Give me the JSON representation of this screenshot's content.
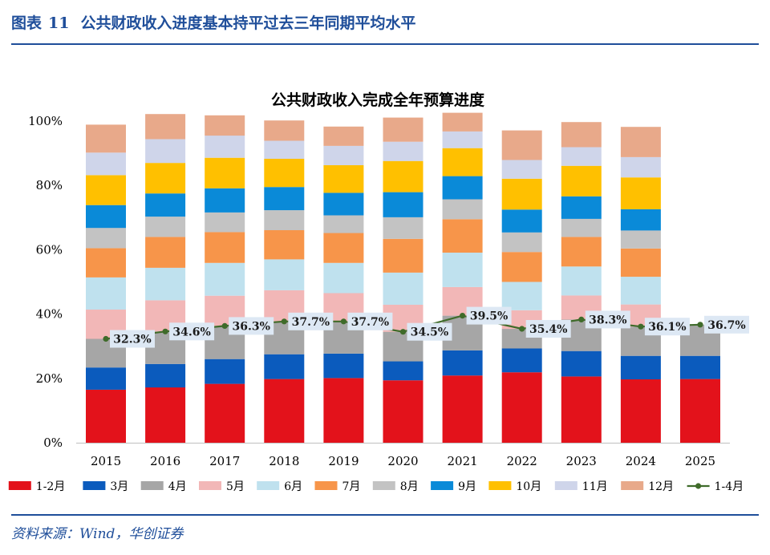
{
  "header": {
    "figure_label": "图表",
    "figure_number": "11",
    "title": "公共财政收入进度基本持平过去三年同期平均水平"
  },
  "source": "资料来源：Wind，华创证券",
  "colors": {
    "1-2月": "#e3121b",
    "3月": "#0b5bbd",
    "4月": "#a6a6a6",
    "5月": "#f2b7b7",
    "6月": "#bfe1ee",
    "7月": "#f7954a",
    "8月": "#c3c3c3",
    "9月": "#0a8ad8",
    "10月": "#ffc000",
    "11月": "#cfd5ea",
    "12月": "#e8a98a",
    "line": "#3f6b2a",
    "label_bg": "#dde8f4",
    "axis_text": "#000000"
  },
  "chart_data": {
    "type": "bar",
    "stacked": true,
    "title": "公共财政收入完成全年预算进度",
    "xlabel": "",
    "ylabel": "",
    "ylim": [
      0,
      100
    ],
    "yticks": [
      "0%",
      "20%",
      "40%",
      "60%",
      "80%",
      "100%"
    ],
    "legend_position": "bottom",
    "categories": [
      "2015",
      "2016",
      "2017",
      "2018",
      "2019",
      "2020",
      "2021",
      "2022",
      "2023",
      "2024",
      "2025"
    ],
    "series": [
      {
        "name": "1-2月",
        "values": [
          16.5,
          17.2,
          18.3,
          19.8,
          20.1,
          19.4,
          20.9,
          21.9,
          20.6,
          19.7,
          19.8
        ]
      },
      {
        "name": "3月",
        "values": [
          6.9,
          7.3,
          7.7,
          7.7,
          7.6,
          5.9,
          7.8,
          7.4,
          7.9,
          7.3,
          7.2
        ]
      },
      {
        "name": "4月",
        "values": [
          8.9,
          10.1,
          10.3,
          10.2,
          10.0,
          9.2,
          10.8,
          6.1,
          9.8,
          9.1,
          9.7
        ]
      },
      {
        "name": "5月",
        "values": [
          9.1,
          9.7,
          9.4,
          9.7,
          8.8,
          8.4,
          8.9,
          5.8,
          7.5,
          6.9,
          null
        ]
      },
      {
        "name": "6月",
        "values": [
          10.0,
          10.1,
          10.2,
          9.6,
          9.4,
          10.0,
          10.7,
          8.8,
          9.0,
          8.6,
          null
        ]
      },
      {
        "name": "7月",
        "values": [
          9.1,
          9.6,
          9.6,
          9.1,
          9.3,
          10.5,
          10.4,
          9.3,
          9.2,
          8.8,
          null
        ]
      },
      {
        "name": "8月",
        "values": [
          6.3,
          6.3,
          6.1,
          6.2,
          5.5,
          6.7,
          6.2,
          6.1,
          5.6,
          5.6,
          null
        ]
      },
      {
        "name": "9月",
        "values": [
          7.1,
          7.2,
          7.5,
          7.2,
          7.0,
          7.8,
          7.2,
          7.1,
          7.0,
          6.6,
          null
        ]
      },
      {
        "name": "10月",
        "values": [
          9.3,
          9.5,
          9.5,
          8.8,
          8.6,
          9.7,
          8.7,
          9.6,
          9.5,
          9.9,
          null
        ]
      },
      {
        "name": "11月",
        "values": [
          7.0,
          7.4,
          6.9,
          5.6,
          6.0,
          6.0,
          5.2,
          5.8,
          5.8,
          6.3,
          null
        ]
      },
      {
        "name": "12月",
        "values": [
          8.7,
          7.8,
          6.3,
          6.3,
          6.0,
          7.5,
          5.8,
          9.2,
          7.8,
          9.4,
          null
        ]
      }
    ],
    "line_series": {
      "name": "1-4月",
      "values": [
        32.3,
        34.6,
        36.3,
        37.7,
        37.7,
        34.5,
        39.5,
        35.4,
        38.3,
        36.1,
        36.7
      ],
      "labels": [
        "32.3%",
        "34.6%",
        "36.3%",
        "37.7%",
        "37.7%",
        "34.5%",
        "39.5%",
        "35.4%",
        "38.3%",
        "36.1%",
        "36.7%"
      ]
    }
  }
}
